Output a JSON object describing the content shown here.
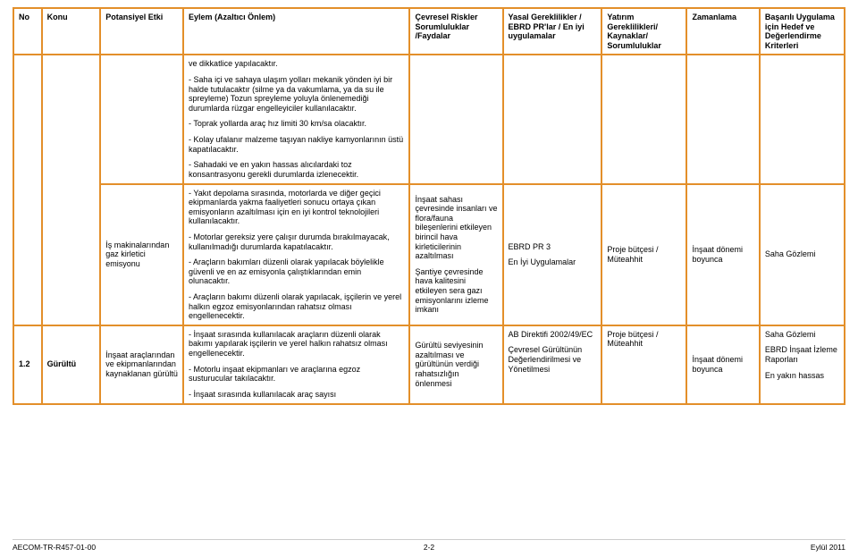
{
  "header": {
    "no": "No",
    "konu": "Konu",
    "potansiyel": "Potansiyel Etki",
    "eylem": "Eylem (Azaltıcı Önlem)",
    "cevresel": "Çevresel Riskler Sorumluluklar /Faydalar",
    "yasal": "Yasal Gereklilikler / EBRD PR'lar / En iyi uygulamalar",
    "yatirim": "Yatırım Gereklilikleri/ Kaynaklar/ Sorumluluklar",
    "zaman": "Zamanlama",
    "basarili": "Başarılı Uygulama için Hedef ve Değerlendirme Kriterleri"
  },
  "rowA": {
    "eylem_p1": "ve dikkatlice yapılacaktır.",
    "eylem_p2": "- Saha içi ve sahaya ulaşım yolları mekanik yönden iyi bir halde tutulacaktır (silme ya da vakumlama, ya da su ile spreyleme) Tozun spreyleme yoluyla önlenemediği durumlarda rüzgar engelleyiciler kullanılacaktır.",
    "eylem_p3": "- Toprak yollarda araç hız limiti 30 km/sa olacaktır.",
    "eylem_p4": "- Kolay ufalanır malzeme taşıyan nakliye kamyonlarının üstü kapatılacaktır.",
    "eylem_p5": "- Sahadaki ve en yakın hassas alıcılardaki toz konsantrasyonu gerekli durumlarda izlenecektir."
  },
  "rowB": {
    "potansiyel": "İş makinalarından gaz kirletici emisyonu",
    "eylem_p1": "- Yakıt depolama sırasında, motorlarda ve diğer geçici ekipmanlarda yakma faaliyetleri sonucu ortaya çıkan emisyonların azaltılması için en iyi kontrol teknolojileri kullanılacaktır.",
    "eylem_p2": "- Motorlar gereksiz yere çalışır durumda bırakılmayacak, kullanılmadığı durumlarda kapatılacaktır.",
    "eylem_p3": "- Araçların bakımları düzenli olarak yapılacak böylelikle güvenli ve en az emisyonla çalıştıklarından emin olunacaktır.",
    "eylem_p4": "- Araçların bakımı düzenli olarak yapılacak, işçilerin ve yerel halkın egzoz emisyonlarından rahatsız olması engellenecektir.",
    "cev_p1": "İnşaat sahası çevresinde insanları ve flora/fauna bileşenlerini etkileyen birincil hava kirleticilerinin azaltılması",
    "cev_p2": "Şantiye çevresinde hava kalitesini etkileyen sera gazı emisyonlarını izleme imkanı",
    "yasal_p1": "EBRD PR 3",
    "yasal_p2": "En İyi Uygulamalar",
    "yatirim": "Proje bütçesi / Müteahhit",
    "zaman": "İnşaat dönemi boyunca",
    "bas": "Saha Gözlemi"
  },
  "rowC": {
    "no": "1.2",
    "konu": "Gürültü",
    "potansiyel": "İnşaat araçlarından ve ekipmanlarından kaynaklanan gürültü",
    "eylem_p1": "- İnşaat sırasında kullanılacak araçların düzenli olarak bakımı yapılarak işçilerin ve yerel halkın rahatsız olması engellenecektir.",
    "eylem_p2": "- Motorlu inşaat ekipmanları ve araçlarına egzoz susturucular takılacaktır.",
    "eylem_p3": "- İnşaat sırasında kullanılacak araç sayısı",
    "cev": "Gürültü seviyesinin azaltılması ve gürültünün verdiği rahatsızlığın önlenmesi",
    "yasal_p1": "AB Direktifi 2002/49/EC",
    "yasal_p2": "Çevresel Gürültünün Değerlendirilmesi ve Yönetilmesi",
    "yatirim": "Proje bütçesi / Müteahhit",
    "zaman": "İnşaat dönemi boyunca",
    "bas_p1": "Saha Gözlemi",
    "bas_p2": "EBRD İnşaat İzleme Raporları",
    "bas_p3": "En yakın hassas"
  },
  "footer": {
    "left": "AECOM-TR-R457-01-00",
    "center": "2-2",
    "right": "Eylül 2011"
  }
}
